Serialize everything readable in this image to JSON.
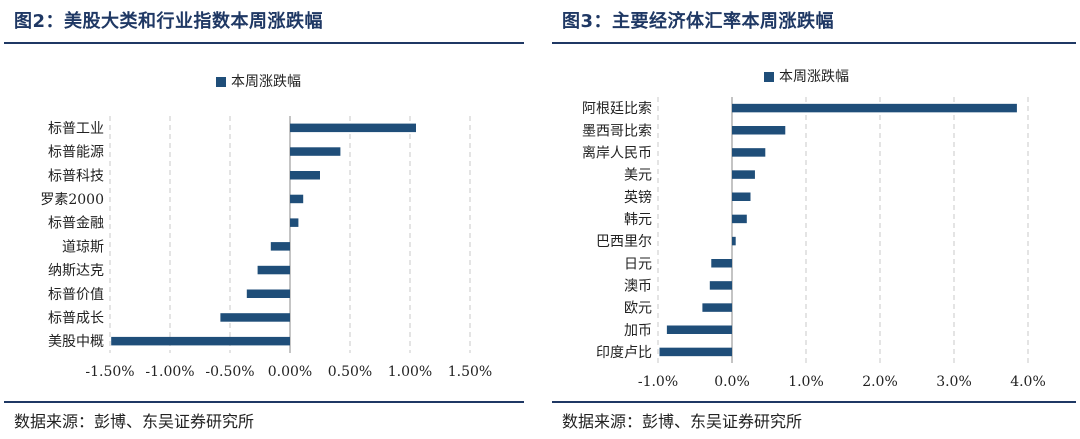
{
  "panels": [
    {
      "title": "图2：美股大类和行业指数本周涨跌幅",
      "source": "数据来源：彭博、东吴证券研究所"
    },
    {
      "title": "图3：主要经济体汇率本周涨跌幅",
      "source": "数据来源：彭博、东吴证券研究所"
    }
  ],
  "colors": {
    "bar": "#1f4e79",
    "title": "#1f3864",
    "grid": "#c8c8c8"
  },
  "chart_data": [
    {
      "type": "bar",
      "orientation": "horizontal",
      "categories": [
        "标普工业",
        "标普能源",
        "标普科技",
        "罗素2000",
        "标普金融",
        "道琼斯",
        "纳斯达克",
        "标普价值",
        "标普成长",
        "美股中概"
      ],
      "series": [
        {
          "name": "本周涨跌幅",
          "values": [
            1.05,
            0.42,
            0.25,
            0.11,
            0.07,
            -0.16,
            -0.27,
            -0.36,
            -0.58,
            -1.49
          ]
        }
      ],
      "xlim": [
        -1.5,
        1.5
      ],
      "ticks": [
        -1.5,
        -1.0,
        -0.5,
        0.0,
        0.5,
        1.0,
        1.5
      ],
      "tick_labels": [
        "-1.50%",
        "-1.00%",
        "-0.50%",
        "0.00%",
        "0.50%",
        "1.00%",
        "1.50%"
      ],
      "grid": true,
      "legend": "top-center"
    },
    {
      "type": "bar",
      "orientation": "horizontal",
      "categories": [
        "阿根廷比索",
        "墨西哥比索",
        "离岸人民币",
        "美元",
        "英镑",
        "韩元",
        "巴西里尔",
        "日元",
        "澳币",
        "欧元",
        "加币",
        "印度卢比"
      ],
      "series": [
        {
          "name": "本周涨跌幅",
          "values": [
            3.85,
            0.72,
            0.45,
            0.31,
            0.25,
            0.2,
            0.05,
            -0.28,
            -0.3,
            -0.4,
            -0.88,
            -0.98
          ]
        }
      ],
      "xlim": [
        -1.0,
        4.0
      ],
      "ticks": [
        -1.0,
        0.0,
        1.0,
        2.0,
        3.0,
        4.0
      ],
      "tick_labels": [
        "-1.0%",
        "0.0%",
        "1.0%",
        "2.0%",
        "3.0%",
        "4.0%"
      ],
      "grid": true,
      "legend": "top-center"
    }
  ]
}
